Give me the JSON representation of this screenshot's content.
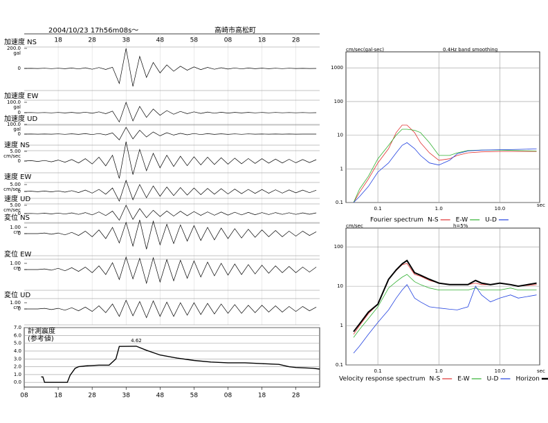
{
  "chart_data": [
    {
      "type": "waveform",
      "title": "2004/10/23  17h56m08s～",
      "subtitle": "高崎市高松町",
      "xlim": [
        0,
        87
      ],
      "xticks": [
        {
          "value": 10,
          "label": "18"
        },
        {
          "value": 20,
          "label": "28"
        },
        {
          "value": 30,
          "label": "38"
        },
        {
          "value": 40,
          "label": "48"
        },
        {
          "value": 50,
          "label": "58"
        },
        {
          "value": 60,
          "label": "08"
        },
        {
          "value": 70,
          "label": "18"
        },
        {
          "value": 80,
          "label": "28"
        }
      ],
      "x": [
        0,
        2,
        4,
        6,
        8,
        10,
        12,
        14,
        16,
        18,
        20,
        22,
        24,
        26,
        28,
        30,
        32,
        34,
        36,
        38,
        40,
        42,
        44,
        46,
        48,
        50,
        52,
        54,
        56,
        58,
        60,
        62,
        64,
        66,
        68,
        70,
        72,
        74,
        76,
        78,
        80,
        82,
        84,
        86
      ],
      "color": "#000000",
      "panels": [
        {
          "name": "加速度 NS",
          "unit": "gal",
          "ylim": [
            -200,
            200
          ],
          "yticks": [
            {
              "value": 200,
              "label": "200.0"
            },
            0
          ],
          "values": [
            0,
            1,
            -1,
            2,
            -2,
            2,
            -3,
            4,
            -5,
            6,
            -8,
            9,
            -10,
            12,
            -150,
            200,
            -180,
            120,
            -90,
            60,
            -45,
            35,
            -28,
            22,
            -18,
            15,
            -12,
            10,
            -8,
            7,
            -6,
            5,
            -5,
            4,
            -3,
            3,
            -3,
            2,
            -2,
            2,
            -1,
            1,
            -1,
            0
          ]
        },
        {
          "name": "加速度 EW",
          "unit": "gal",
          "ylim": [
            -100,
            100
          ],
          "yticks": [
            {
              "value": 100,
              "label": "100.0"
            },
            0
          ],
          "values": [
            0,
            1,
            -1,
            1,
            -2,
            2,
            -3,
            3,
            -4,
            5,
            -6,
            8,
            -10,
            15,
            -90,
            100,
            -80,
            60,
            -45,
            35,
            -25,
            20,
            -15,
            12,
            -10,
            8,
            -7,
            6,
            -5,
            4,
            -4,
            3,
            -3,
            3,
            -2,
            2,
            -2,
            2,
            -1,
            1,
            -1,
            1,
            -1,
            0
          ]
        },
        {
          "name": "加速度 UD",
          "unit": "gal",
          "ylim": [
            -100,
            100
          ],
          "yticks": [
            {
              "value": 100,
              "label": "100.0"
            },
            0
          ],
          "values": [
            0,
            1,
            -1,
            1,
            -1,
            2,
            -2,
            3,
            -3,
            4,
            -5,
            6,
            -8,
            12,
            -60,
            70,
            -50,
            40,
            -30,
            22,
            -18,
            14,
            -10,
            8,
            -7,
            6,
            -5,
            4,
            -3,
            3,
            -3,
            2,
            -2,
            2,
            -1,
            1,
            -1,
            1,
            -1,
            1,
            -1,
            0,
            0,
            0
          ]
        },
        {
          "name": "速度 NS",
          "unit": "cm/sec",
          "ylim": [
            -5,
            5
          ],
          "yticks": [
            {
              "value": 5,
              "label": "5.00"
            },
            0
          ],
          "values": [
            0,
            0.2,
            -0.2,
            0.3,
            -0.4,
            0.5,
            -0.6,
            0.8,
            -1,
            1.2,
            -1.5,
            2,
            -2.5,
            3,
            -9,
            10,
            -7,
            6,
            -5,
            4,
            -3.5,
            3,
            -2.8,
            2.5,
            -2.4,
            2.2,
            -2,
            2,
            -1.8,
            1.7,
            -1.6,
            1.5,
            -1.4,
            1.3,
            -1.2,
            1.2,
            -1.1,
            1,
            -1,
            0.9,
            -0.9,
            0.8,
            -0.8,
            0.7
          ]
        },
        {
          "name": "速度 EW",
          "unit": "cm/sec",
          "ylim": [
            -5,
            5
          ],
          "yticks": [
            {
              "value": 5,
              "label": "5.00"
            },
            0
          ],
          "values": [
            0,
            0.2,
            -0.2,
            0.3,
            -0.3,
            0.4,
            -0.5,
            0.6,
            -0.8,
            1,
            -1.2,
            1.5,
            -2,
            2.5,
            -7,
            8,
            -6,
            5,
            -4.5,
            4,
            -3.5,
            3.2,
            -3,
            2.8,
            -2.6,
            2.5,
            -2.3,
            2.2,
            -2,
            2,
            -1.8,
            1.7,
            -1.6,
            1.5,
            -1.4,
            1.4,
            -1.3,
            1.2,
            -1.2,
            1.1,
            -1,
            1,
            -0.9,
            0.9
          ]
        },
        {
          "name": "速度 UD",
          "unit": "cm/sec",
          "ylim": [
            -5,
            5
          ],
          "yticks": [
            {
              "value": 5,
              "label": "5.00"
            },
            0
          ],
          "values": [
            0,
            0.1,
            -0.1,
            0.2,
            -0.2,
            0.3,
            -0.3,
            0.4,
            -0.5,
            0.6,
            -0.8,
            1,
            -1.2,
            1.5,
            -4,
            5,
            -3.5,
            3,
            -2.5,
            2,
            -1.8,
            1.6,
            -1.5,
            1.4,
            -1.3,
            1.2,
            -1.1,
            1,
            -1,
            0.9,
            -0.9,
            0.8,
            -0.8,
            0.7,
            -0.7,
            0.6,
            -0.6,
            0.6,
            -0.5,
            0.5,
            -0.5,
            0.4,
            -0.4,
            0.4
          ]
        },
        {
          "name": "変位 NS",
          "unit": "cm",
          "ylim": [
            -1,
            1
          ],
          "yticks": [
            {
              "value": 1,
              "label": "1.00"
            },
            0
          ],
          "values": [
            0,
            0,
            0,
            0.1,
            -0.1,
            0.1,
            -0.2,
            0.2,
            -0.3,
            0.4,
            -0.5,
            0.6,
            -0.8,
            1,
            -1.5,
            1.8,
            -2,
            2.2,
            -2.5,
            2,
            -1.8,
            1.5,
            -1.6,
            1.4,
            -1.2,
            1.3,
            -1.1,
            1,
            -1,
            0.9,
            -0.8,
            0.8,
            -0.7,
            0.7,
            -0.6,
            0.6,
            -0.5,
            0.5,
            -0.5,
            0.4,
            -0.4,
            0.4,
            -0.3,
            0.3
          ]
        },
        {
          "name": "変位 EW",
          "unit": "cm",
          "ylim": [
            -1,
            1
          ],
          "yticks": [
            {
              "value": 1,
              "label": "1.00"
            },
            0
          ],
          "values": [
            0,
            0,
            0,
            0.1,
            -0.1,
            0.2,
            -0.2,
            0.3,
            -0.3,
            0.4,
            -0.5,
            0.6,
            -0.8,
            1.1,
            -1.6,
            2,
            -1.5,
            1.8,
            -2.2,
            1.9,
            -2,
            1.6,
            -1.8,
            1.5,
            -1.4,
            1.4,
            -1.2,
            1.2,
            -1,
            1,
            -0.9,
            0.9,
            -0.8,
            0.8,
            -0.7,
            0.7,
            -0.6,
            0.6,
            -0.5,
            0.5,
            -0.5,
            0.4,
            -0.4,
            0.4
          ]
        },
        {
          "name": "変位 UD",
          "unit": "cm",
          "ylim": [
            -1,
            1
          ],
          "yticks": [
            {
              "value": 1,
              "label": "1.00"
            },
            0
          ],
          "values": [
            0,
            0,
            0,
            0.1,
            -0.1,
            0.1,
            -0.2,
            0.2,
            -0.3,
            0.3,
            -0.4,
            0.5,
            -0.6,
            0.8,
            -1.2,
            1.4,
            -1.1,
            1.2,
            -1.4,
            1.3,
            -1.2,
            1.1,
            -1.2,
            1,
            -1,
            1,
            -0.9,
            0.9,
            -0.8,
            0.8,
            -0.7,
            0.7,
            -0.7,
            0.6,
            -0.6,
            0.6,
            -0.5,
            0.5,
            -0.5,
            0.4,
            -0.4,
            0.4,
            -0.3,
            0.3
          ]
        }
      ]
    },
    {
      "type": "line",
      "title": "計測震度",
      "subtitle": "(参考値)",
      "color": "#000000",
      "xlim": [
        0,
        87
      ],
      "xticks": [
        {
          "value": 0,
          "label": "08"
        },
        {
          "value": 10,
          "label": "18"
        },
        {
          "value": 20,
          "label": "28"
        },
        {
          "value": 30,
          "label": "38"
        },
        {
          "value": 40,
          "label": "48"
        },
        {
          "value": 50,
          "label": "58"
        },
        {
          "value": 60,
          "label": "08"
        },
        {
          "value": 70,
          "label": "18"
        },
        {
          "value": 80,
          "label": "28"
        }
      ],
      "ylim": [
        -0.6,
        7
      ],
      "yticks": [
        {
          "value": 0,
          "label": "0.0"
        },
        {
          "value": 1,
          "label": "1.0"
        },
        {
          "value": 2,
          "label": "2.0"
        },
        {
          "value": 3,
          "label": "3.0"
        },
        {
          "value": 4,
          "label": "4.0"
        },
        {
          "value": 5,
          "label": "5.0"
        },
        {
          "value": 6,
          "label": "6.0"
        },
        {
          "value": 7,
          "label": "7.0"
        }
      ],
      "grid": true,
      "x": [
        5,
        5.5,
        6,
        12.7,
        13.5,
        15,
        16,
        18,
        22,
        25,
        27,
        28,
        33,
        36,
        40,
        45,
        50,
        55,
        60,
        65,
        70,
        75,
        78,
        80,
        85,
        87
      ],
      "values": [
        0.7,
        0.7,
        0,
        0,
        0.9,
        1.8,
        2.0,
        2.1,
        2.2,
        2.2,
        3.0,
        4.6,
        4.62,
        4.1,
        3.5,
        3.1,
        2.8,
        2.6,
        2.5,
        2.5,
        2.4,
        2.3,
        2.0,
        1.9,
        1.8,
        1.7
      ]
    },
    {
      "type": "line",
      "title": "Fourier spectrum",
      "ylabel": "cm/sec(gal·sec)",
      "subtitle": "0.4Hz band smoothing",
      "xlabel": "sec",
      "log_x": true,
      "log_y": true,
      "grid": true,
      "legend": "bottom",
      "xlim": [
        0.03,
        45
      ],
      "xticks": [
        0.1,
        {
          "value": 1,
          "label": "1.0"
        },
        {
          "value": 10,
          "label": "10.0"
        }
      ],
      "ylim": [
        0.1,
        3000
      ],
      "yticks": [
        0.1,
        1,
        10,
        100,
        1000
      ],
      "x": [
        0.04,
        0.05,
        0.07,
        0.1,
        0.15,
        0.2,
        0.25,
        0.3,
        0.4,
        0.5,
        0.7,
        1,
        1.5,
        2,
        3,
        5,
        10,
        20,
        40
      ],
      "series": [
        {
          "name": "N-S",
          "color": "#e03030",
          "values": [
            0.1,
            0.2,
            0.5,
            1.5,
            4,
            12,
            20,
            20,
            12,
            6,
            3,
            1.8,
            2,
            2.5,
            3,
            3.2,
            3.3,
            3.3,
            3.3
          ]
        },
        {
          "name": "E-W",
          "color": "#30b030",
          "values": [
            0.1,
            0.25,
            0.6,
            2,
            5,
            10,
            15,
            15,
            14,
            12,
            6,
            2.5,
            2.5,
            3,
            3.5,
            3.6,
            3.6,
            3.5,
            3.4
          ]
        },
        {
          "name": "U-D",
          "color": "#2040e0",
          "values": [
            0.1,
            0.15,
            0.3,
            0.8,
            1.5,
            3,
            5,
            6,
            4,
            2.5,
            1.5,
            1.3,
            1.8,
            2.8,
            3.4,
            3.6,
            3.7,
            3.8,
            3.9
          ]
        }
      ]
    },
    {
      "type": "line",
      "title": "Velocity response spectrum",
      "ylabel": "cm/sec",
      "subtitle": "h=5%",
      "xlabel": "sec",
      "log_x": true,
      "log_y": true,
      "grid": true,
      "legend": "bottom",
      "xlim": [
        0.03,
        45
      ],
      "xticks": [
        0.1,
        {
          "value": 1,
          "label": "1.0"
        },
        {
          "value": 10,
          "label": "10.0"
        }
      ],
      "ylim": [
        0.1,
        300
      ],
      "yticks": [
        0.1,
        1,
        10,
        100
      ],
      "x": [
        0.04,
        0.05,
        0.07,
        0.1,
        0.15,
        0.2,
        0.25,
        0.3,
        0.4,
        0.5,
        0.7,
        1,
        1.5,
        2,
        3,
        4,
        5,
        7,
        10,
        15,
        20,
        40
      ],
      "series": [
        {
          "name": "N-S",
          "color": "#e03030",
          "values": [
            0.6,
            1,
            2,
            3.5,
            15,
            25,
            35,
            38,
            20,
            18,
            14,
            12,
            11,
            11,
            11,
            12,
            11,
            11,
            12,
            11,
            10,
            11
          ]
        },
        {
          "name": "E-W",
          "color": "#30b030",
          "values": [
            0.5,
            0.8,
            1.5,
            3,
            9,
            13,
            17,
            20,
            13,
            11,
            9,
            8,
            8,
            8,
            8,
            9,
            8,
            8,
            8,
            9,
            8,
            8
          ]
        },
        {
          "name": "U-D",
          "color": "#2040e0",
          "values": [
            0.2,
            0.3,
            0.6,
            1.2,
            2.5,
            5,
            8,
            11,
            5,
            4,
            3,
            2.8,
            2.6,
            2.5,
            3,
            10,
            6,
            4,
            5,
            6,
            5,
            6
          ]
        },
        {
          "name": "Horizon",
          "color": "#000000",
          "values": [
            0.7,
            1.1,
            2.2,
            3.5,
            15,
            26,
            37,
            45,
            22,
            19,
            15,
            12,
            11,
            11,
            11,
            14,
            12,
            11,
            12,
            11,
            10,
            12
          ]
        }
      ]
    }
  ]
}
